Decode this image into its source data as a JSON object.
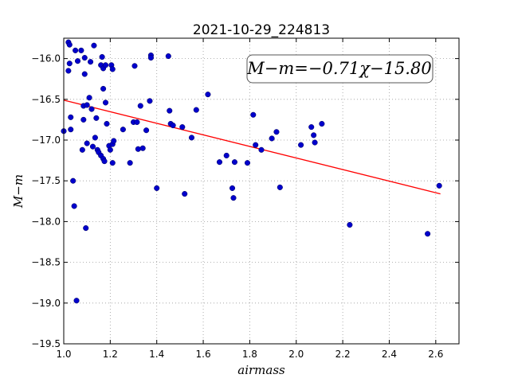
{
  "chart_data": {
    "type": "scatter",
    "title": "2021-10-29_224813",
    "xlabel": "airmass",
    "ylabel": "M−m",
    "xlim": [
      1.0,
      2.7
    ],
    "ylim": [
      -19.5,
      -15.75
    ],
    "xticks": [
      "1.0",
      "1.2",
      "1.4",
      "1.6",
      "1.8",
      "2.0",
      "2.2",
      "2.4",
      "2.6"
    ],
    "yticks": [
      "−16.0",
      "−16.5",
      "−17.0",
      "−17.5",
      "−18.0",
      "−18.5",
      "−19.0",
      "−19.5"
    ],
    "grid": true,
    "annotation": "M−m=−0.71χ−15.80",
    "fit": {
      "slope": -0.71,
      "intercept": -15.8,
      "x_range": [
        1.0,
        2.62
      ],
      "color": "#ff0000"
    },
    "point_color": "#0000cc",
    "points": [
      [
        1.0,
        -16.89
      ],
      [
        1.02,
        -15.8
      ],
      [
        1.025,
        -15.83
      ],
      [
        1.02,
        -16.15
      ],
      [
        1.025,
        -16.06
      ],
      [
        1.03,
        -16.72
      ],
      [
        1.03,
        -16.87
      ],
      [
        1.04,
        -17.5
      ],
      [
        1.045,
        -17.81
      ],
      [
        1.05,
        -15.9
      ],
      [
        1.055,
        -18.97
      ],
      [
        1.06,
        -16.03
      ],
      [
        1.075,
        -15.9
      ],
      [
        1.08,
        -17.12
      ],
      [
        1.085,
        -16.58
      ],
      [
        1.085,
        -16.75
      ],
      [
        1.09,
        -15.99
      ],
      [
        1.09,
        -16.19
      ],
      [
        1.095,
        -18.08
      ],
      [
        1.1,
        -16.57
      ],
      [
        1.1,
        -17.04
      ],
      [
        1.11,
        -16.48
      ],
      [
        1.115,
        -16.04
      ],
      [
        1.12,
        -16.62
      ],
      [
        1.125,
        -17.08
      ],
      [
        1.13,
        -15.84
      ],
      [
        1.135,
        -16.97
      ],
      [
        1.14,
        -16.73
      ],
      [
        1.145,
        -17.12
      ],
      [
        1.15,
        -17.15
      ],
      [
        1.16,
        -17.19
      ],
      [
        1.16,
        -16.08
      ],
      [
        1.165,
        -15.98
      ],
      [
        1.17,
        -16.12
      ],
      [
        1.17,
        -16.37
      ],
      [
        1.17,
        -17.23
      ],
      [
        1.175,
        -17.26
      ],
      [
        1.18,
        -16.08
      ],
      [
        1.18,
        -16.54
      ],
      [
        1.185,
        -16.8
      ],
      [
        1.195,
        -17.07
      ],
      [
        1.2,
        -17.12
      ],
      [
        1.205,
        -16.08
      ],
      [
        1.21,
        -16.13
      ],
      [
        1.21,
        -17.05
      ],
      [
        1.21,
        -17.28
      ],
      [
        1.215,
        -17.01
      ],
      [
        1.255,
        -16.87
      ],
      [
        1.285,
        -17.28
      ],
      [
        1.3,
        -16.78
      ],
      [
        1.305,
        -16.09
      ],
      [
        1.315,
        -16.78
      ],
      [
        1.32,
        -17.11
      ],
      [
        1.33,
        -16.58
      ],
      [
        1.34,
        -17.1
      ],
      [
        1.355,
        -16.88
      ],
      [
        1.37,
        -16.52
      ],
      [
        1.375,
        -15.96
      ],
      [
        1.375,
        -15.99
      ],
      [
        1.4,
        -17.59
      ],
      [
        1.45,
        -15.97
      ],
      [
        1.455,
        -16.64
      ],
      [
        1.46,
        -16.8
      ],
      [
        1.47,
        -16.82
      ],
      [
        1.51,
        -16.84
      ],
      [
        1.52,
        -17.66
      ],
      [
        1.55,
        -16.97
      ],
      [
        1.57,
        -16.63
      ],
      [
        1.62,
        -16.44
      ],
      [
        1.67,
        -17.27
      ],
      [
        1.7,
        -17.19
      ],
      [
        1.725,
        -17.59
      ],
      [
        1.73,
        -17.71
      ],
      [
        1.735,
        -17.27
      ],
      [
        1.79,
        -17.28
      ],
      [
        1.815,
        -16.69
      ],
      [
        1.825,
        -17.06
      ],
      [
        1.85,
        -17.12
      ],
      [
        1.895,
        -16.98
      ],
      [
        1.915,
        -16.9
      ],
      [
        1.93,
        -17.58
      ],
      [
        2.02,
        -17.06
      ],
      [
        2.065,
        -16.84
      ],
      [
        2.075,
        -16.94
      ],
      [
        2.08,
        -17.03
      ],
      [
        2.11,
        -16.8
      ],
      [
        2.23,
        -18.04
      ],
      [
        2.565,
        -18.15
      ],
      [
        2.615,
        -17.56
      ]
    ]
  }
}
